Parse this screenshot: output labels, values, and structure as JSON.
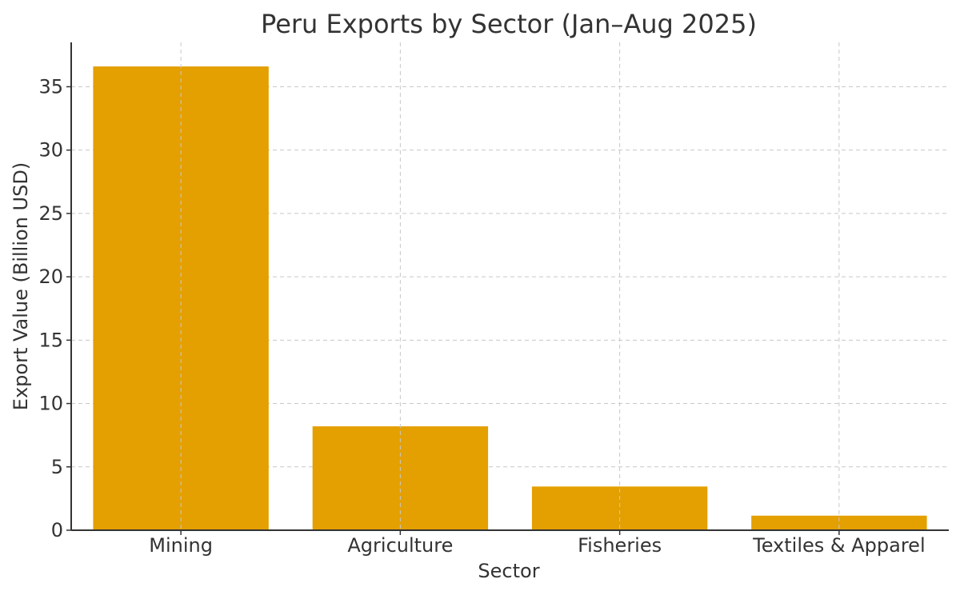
{
  "chart_data": {
    "type": "bar",
    "title": "Peru Exports by Sector (Jan–Aug 2025)",
    "xlabel": "Sector",
    "ylabel": "Export Value (Billion USD)",
    "categories": [
      "Mining",
      "Agriculture",
      "Fisheries",
      "Textiles & Apparel"
    ],
    "values": [
      36.6,
      8.2,
      3.45,
      1.15
    ],
    "ylim": [
      0,
      38.5
    ],
    "yticks": [
      0,
      5,
      10,
      15,
      20,
      25,
      30,
      35
    ],
    "grid": true,
    "bar_color": "#E49F00"
  }
}
